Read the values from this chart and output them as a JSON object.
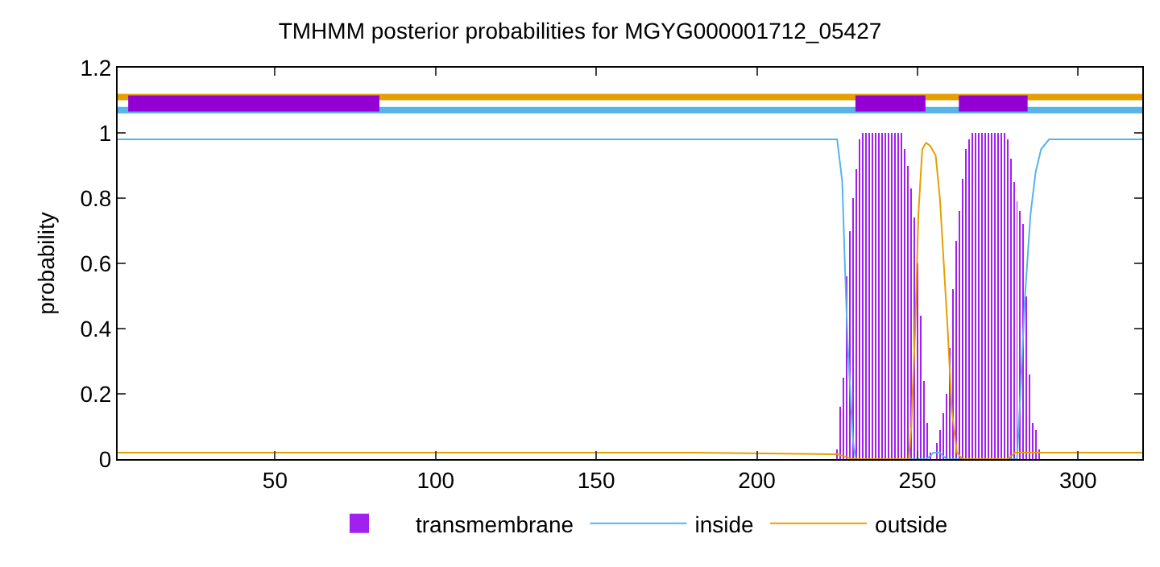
{
  "chart_data": {
    "type": "line",
    "title": "TMHMM posterior probabilities for MGYG000001712_05427",
    "ylabel": "probability",
    "xlim": [
      1,
      320
    ],
    "ylim": [
      0,
      1.2
    ],
    "xticks": [
      50,
      100,
      150,
      200,
      250,
      300
    ],
    "yticks": [
      0,
      0.2,
      0.4,
      0.6,
      0.8,
      1,
      1.2
    ],
    "grid": false,
    "legend": "bottom",
    "marker": "none",
    "line_style": "solid",
    "series": [
      {
        "name": "transmembrane",
        "type": "bar",
        "color": "#a020f0",
        "x": [
          225,
          226,
          227,
          228,
          229,
          230,
          231,
          232,
          233,
          234,
          235,
          236,
          237,
          238,
          239,
          240,
          241,
          242,
          243,
          244,
          245,
          246,
          247,
          248,
          249,
          250,
          251,
          252,
          253,
          254,
          256,
          257,
          258,
          259,
          260,
          261,
          262,
          263,
          264,
          265,
          266,
          267,
          268,
          269,
          270,
          271,
          272,
          273,
          274,
          275,
          276,
          277,
          278,
          279,
          280,
          281,
          282,
          283,
          284,
          285,
          286,
          287,
          288
        ],
        "values": [
          0.03,
          0.16,
          0.25,
          0.56,
          0.7,
          0.8,
          0.89,
          0.98,
          1,
          1,
          1,
          1,
          1,
          1,
          1,
          1,
          1,
          1,
          1,
          1,
          1,
          0.95,
          0.9,
          0.83,
          0.74,
          0.6,
          0.44,
          0.24,
          0.11,
          0.02,
          0.05,
          0.09,
          0.14,
          0.2,
          0.34,
          0.52,
          0.67,
          0.76,
          0.86,
          0.95,
          0.98,
          1,
          1,
          1,
          1,
          1,
          1,
          1,
          1,
          1,
          1,
          1,
          0.98,
          0.92,
          0.85,
          0.79,
          0.76,
          0.72,
          0.5,
          0.26,
          0.11,
          0.09,
          0.03
        ]
      },
      {
        "name": "inside",
        "color": "#56b4e9",
        "x": [
          1,
          90,
          225,
          226.6,
          227.4,
          228.3,
          230,
          230.8,
          253,
          255,
          257,
          259,
          281,
          281.8,
          283.5,
          285.2,
          286.8,
          288.5,
          291,
          320
        ],
        "values": [
          0.98,
          0.98,
          0.98,
          0.85,
          0.6,
          0.35,
          0.05,
          0,
          0,
          0.02,
          0.02,
          0,
          0,
          0.15,
          0.5,
          0.75,
          0.88,
          0.95,
          0.98,
          0.98
        ]
      },
      {
        "name": "outside",
        "color": "#e69f00",
        "x": [
          1,
          180,
          225,
          230,
          247.3,
          248.1,
          249.3,
          250.3,
          251.5,
          252.7,
          254,
          255.7,
          257,
          258.2,
          259.4,
          260.7,
          262.3,
          264,
          278,
          280.5,
          320
        ],
        "values": [
          0.02,
          0.02,
          0.015,
          0,
          0,
          0.1,
          0.4,
          0.75,
          0.95,
          0.97,
          0.96,
          0.93,
          0.8,
          0.6,
          0.4,
          0.15,
          0.02,
          0,
          0,
          0.02,
          0.02
        ]
      },
      {
        "color": "#e69f00",
        "x": [
          1,
          320
        ],
        "values": [
          1.11,
          1.11
        ]
      },
      {
        "color": "#56b4e9",
        "x": [
          1,
          320
        ],
        "values": [
          1.07,
          1.07
        ]
      },
      {
        "color": "#9400d3",
        "x": [
          4.3,
          82.5,
          83,
          230.7,
          252.5,
          253,
          262.9,
          284.3
        ],
        "values": [
          1.09,
          1.09,
          null,
          1.09,
          1.09,
          null,
          1.09,
          1.09
        ]
      }
    ]
  }
}
